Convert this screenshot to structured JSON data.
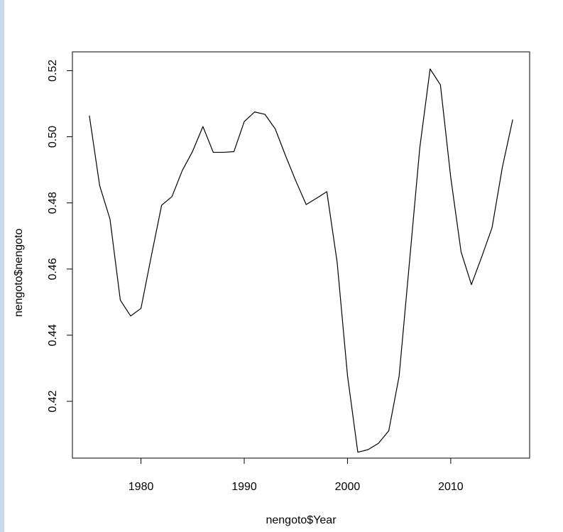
{
  "chart_data": {
    "type": "line",
    "title": "",
    "xlabel": "nengoto$Year",
    "ylabel": "nengoto$nengoto",
    "xlim": [
      1973.36,
      2017.64
    ],
    "ylim": [
      0.40282,
      0.52568
    ],
    "x_ticks": [
      1980,
      1990,
      2000,
      2010
    ],
    "x_tick_labels": [
      "1980",
      "1990",
      "2000",
      "2010"
    ],
    "y_ticks": [
      0.42,
      0.44,
      0.46,
      0.48,
      0.5,
      0.52
    ],
    "y_tick_labels": [
      "0.42",
      "0.44",
      "0.46",
      "0.48",
      "0.50",
      "0.52"
    ],
    "grid": false,
    "legend": "none",
    "line_color": "#000000",
    "series": [
      {
        "x": [
          1975,
          1976,
          1977,
          1978,
          1979,
          1980,
          1981,
          1982,
          1983,
          1984,
          1985,
          1986,
          1987,
          1988,
          1989,
          1990,
          1991,
          1992,
          1993,
          1994,
          1995,
          1996,
          1997,
          1998,
          1999,
          2000,
          2001,
          2002,
          2003,
          2004,
          2005,
          2006,
          2007,
          2008,
          2009,
          2010,
          2011,
          2012,
          2013,
          2014,
          2015,
          2016
        ],
        "values": [
          0.5064,
          0.4852,
          0.4751,
          0.4506,
          0.4458,
          0.4481,
          0.4639,
          0.4793,
          0.4819,
          0.4898,
          0.4956,
          0.5031,
          0.4953,
          0.4953,
          0.4955,
          0.5046,
          0.5075,
          0.5068,
          0.5024,
          0.4943,
          0.4866,
          0.4795,
          0.4814,
          0.4834,
          0.462,
          0.4278,
          0.4046,
          0.4054,
          0.4073,
          0.4111,
          0.4276,
          0.462,
          0.4966,
          0.5205,
          0.5157,
          0.4877,
          0.4652,
          0.4553,
          0.4637,
          0.4725,
          0.4908,
          0.5052
        ]
      }
    ]
  }
}
